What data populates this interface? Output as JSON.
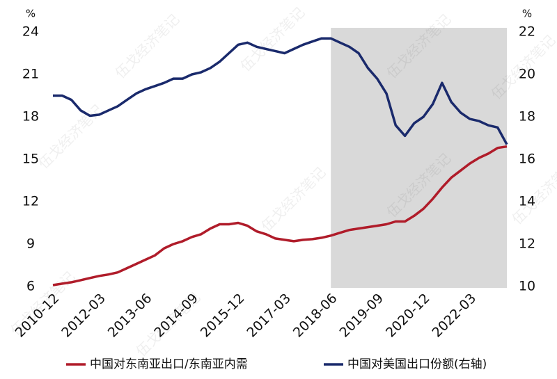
{
  "chart_data": {
    "type": "line",
    "y_label": "%",
    "y2_label": "%",
    "watermark": "伍戈经济笔记",
    "categories": [
      "2010-12",
      null,
      null,
      null,
      null,
      "2012-03",
      null,
      null,
      null,
      null,
      "2013-06",
      null,
      null,
      null,
      null,
      "2014-09",
      null,
      null,
      null,
      null,
      "2015-12",
      null,
      null,
      null,
      null,
      "2017-03",
      null,
      null,
      null,
      null,
      "2018-06",
      null,
      null,
      null,
      null,
      "2019-09",
      null,
      null,
      null,
      null,
      "2020-12",
      null,
      null,
      null,
      null,
      "2022-03",
      null,
      null,
      null,
      null
    ],
    "shaded_from": "2018-06",
    "shade_color": "#d9d9d9",
    "ylim": [
      6,
      24
    ],
    "yticks": [
      6,
      9,
      12,
      15,
      18,
      21,
      24
    ],
    "y2lim": [
      10,
      22
    ],
    "y2ticks": [
      10,
      12,
      14,
      16,
      18,
      20,
      22
    ],
    "legend": "bottom",
    "series": [
      {
        "name": "中国对东南亚出口/东南亚内需",
        "color": "#b01c2a",
        "values": [
          6.1,
          6.2,
          6.3,
          6.45,
          6.6,
          6.75,
          6.85,
          7.0,
          7.3,
          7.6,
          7.9,
          8.2,
          8.7,
          9.0,
          9.2,
          9.5,
          9.7,
          10.1,
          10.4,
          10.4,
          10.5,
          10.3,
          9.9,
          9.7,
          9.4,
          9.3,
          9.2,
          9.3,
          9.35,
          9.45,
          9.6,
          9.8,
          10.0,
          10.1,
          10.2,
          10.3,
          10.4,
          10.6,
          10.6,
          11.0,
          11.5,
          12.2,
          13.0,
          13.7,
          14.2,
          14.7,
          15.1,
          15.4,
          15.8,
          15.9
        ]
      },
      {
        "name": "中国对美国出口份额(右轴)",
        "color": "#1a2a6c",
        "axis": "y2",
        "values": [
          19.0,
          19.0,
          18.8,
          18.3,
          18.05,
          18.1,
          18.3,
          18.5,
          18.8,
          19.1,
          19.3,
          19.45,
          19.6,
          19.8,
          19.8,
          20.0,
          20.1,
          20.3,
          20.6,
          21.0,
          21.4,
          21.5,
          21.3,
          21.2,
          21.1,
          21.0,
          21.2,
          21.4,
          21.55,
          21.7,
          21.7,
          21.5,
          21.3,
          21.0,
          20.3,
          19.8,
          19.1,
          17.6,
          17.1,
          17.7,
          18.0,
          18.6,
          19.6,
          18.7,
          18.2,
          17.9,
          17.8,
          17.6,
          17.5,
          16.7
        ]
      }
    ]
  }
}
